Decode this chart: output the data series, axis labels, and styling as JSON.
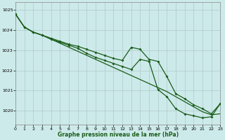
{
  "title": "Graphe pression niveau de la mer (hPa)",
  "background_color": "#cdeaea",
  "grid_color": "#b0c8c8",
  "line_color": "#1a5c1a",
  "xlim": [
    0,
    23
  ],
  "ylim": [
    1019.3,
    1025.4
  ],
  "yticks": [
    1020,
    1021,
    1022,
    1023,
    1024,
    1025
  ],
  "xticks": [
    0,
    1,
    2,
    3,
    4,
    5,
    6,
    7,
    8,
    9,
    10,
    11,
    12,
    13,
    14,
    15,
    16,
    17,
    18,
    19,
    20,
    21,
    22,
    23
  ],
  "smooth_line": [
    1024.8,
    1024.15,
    1023.9,
    1023.75,
    1023.55,
    1023.35,
    1023.15,
    1022.95,
    1022.75,
    1022.55,
    1022.35,
    1022.15,
    1021.95,
    1021.75,
    1021.55,
    1021.35,
    1021.15,
    1020.95,
    1020.7,
    1020.45,
    1020.2,
    1019.95,
    1019.8,
    1019.85
  ],
  "line_upper": [
    1024.8,
    1024.15,
    1023.9,
    1023.75,
    1023.6,
    1023.45,
    1023.3,
    1023.2,
    1023.05,
    1022.9,
    1022.75,
    1022.6,
    1022.5,
    1023.15,
    1023.05,
    1022.55,
    1022.45,
    1021.7,
    1020.85,
    1020.6,
    1020.3,
    1020.1,
    1019.85,
    1020.35
  ],
  "line_lower": [
    1024.8,
    1024.15,
    1023.9,
    1023.75,
    1023.55,
    1023.4,
    1023.25,
    1023.1,
    1022.85,
    1022.65,
    1022.5,
    1022.35,
    1022.2,
    1022.05,
    1022.55,
    1022.45,
    1021.05,
    1020.7,
    1020.1,
    1019.85,
    1019.75,
    1019.65,
    1019.7,
    1020.35
  ]
}
